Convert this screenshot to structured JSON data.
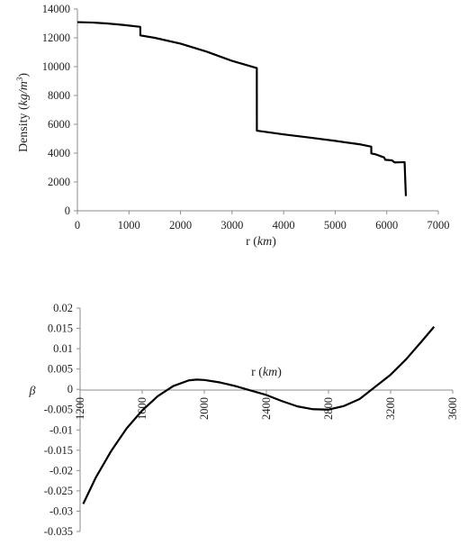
{
  "chart_data": [
    {
      "type": "line",
      "title": "",
      "xlabel": "r (km)",
      "xlabel_parts": {
        "main": "r (",
        "italic": "km",
        "close": ")"
      },
      "ylabel": "Density (kg/m³)",
      "ylabel_parts": {
        "main": "Density  (",
        "italic": "kg/m",
        "sup": "3",
        "close": ")"
      },
      "xlim": [
        0,
        7000
      ],
      "ylim": [
        0,
        14000
      ],
      "x_ticks": [
        "0",
        "1000",
        "2000",
        "3000",
        "4000",
        "5000",
        "6000",
        "7000"
      ],
      "y_ticks": [
        "0",
        "2000",
        "4000",
        "6000",
        "8000",
        "10000",
        "12000",
        "14000"
      ],
      "grid": false,
      "series": [
        {
          "x": [
            0,
            300,
            600,
            900,
            1220,
            1221,
            1500,
            2000,
            2500,
            3000,
            3480,
            3481,
            4000,
            4500,
            5000,
            5500,
            5700,
            5701,
            5800,
            5950,
            5971,
            6100,
            6151,
            6300,
            6346,
            6371
          ],
          "y": [
            13090,
            13060,
            12990,
            12890,
            12760,
            12170,
            12000,
            11600,
            11050,
            10400,
            9900,
            5560,
            5300,
            5080,
            4850,
            4600,
            4450,
            3980,
            3900,
            3700,
            3540,
            3500,
            3360,
            3370,
            3380,
            1020
          ]
        }
      ]
    },
    {
      "type": "line",
      "title": "",
      "xlabel": "r (km)",
      "xlabel_parts": {
        "main": "r (",
        "italic": "km",
        "close": ")"
      },
      "ylabel": "β",
      "xlim": [
        1200,
        3600
      ],
      "ylim": [
        -0.035,
        0.02
      ],
      "x_ticks": [
        "1200",
        "1600",
        "2000",
        "2400",
        "2800",
        "3200",
        "3600"
      ],
      "y_ticks": [
        "0.02",
        "0.015",
        "0.01",
        "0.005",
        "0",
        "-0.005",
        "-0.01",
        "-0.015",
        "-0.02",
        "-0.025",
        "-0.03",
        "-0.035"
      ],
      "grid": false,
      "series": [
        {
          "x": [
            1220,
            1300,
            1400,
            1500,
            1600,
            1700,
            1800,
            1900,
            1950,
            2000,
            2100,
            2200,
            2300,
            2400,
            2500,
            2600,
            2700,
            2800,
            2900,
            3000,
            3100,
            3200,
            3300,
            3400,
            3480
          ],
          "y": [
            -0.0282,
            -0.0218,
            -0.0152,
            -0.0096,
            -0.0052,
            -0.0017,
            0.0008,
            0.0022,
            0.0024,
            0.0023,
            0.0017,
            0.0008,
            -0.0003,
            -0.0014,
            -0.0029,
            -0.0042,
            -0.0049,
            -0.005,
            -0.0041,
            -0.0024,
            0.0006,
            0.0036,
            0.0074,
            0.0118,
            0.0154
          ]
        }
      ]
    }
  ]
}
